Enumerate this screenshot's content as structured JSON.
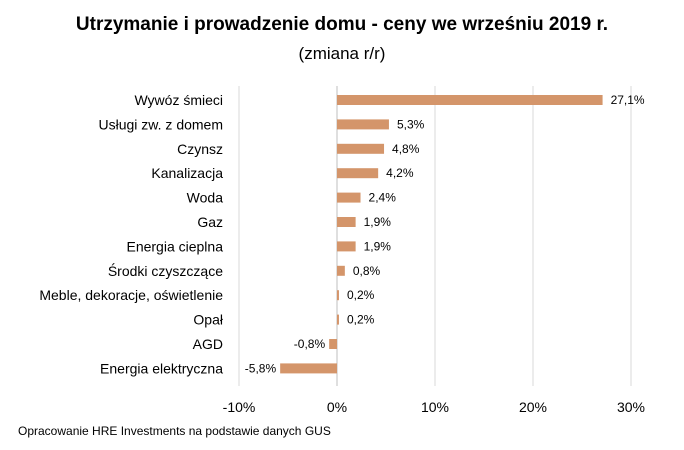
{
  "chart_data": {
    "type": "bar",
    "orientation": "horizontal",
    "title": "Utrzymanie i prowadzenie domu - ceny we wrześniu 2019 r.",
    "subtitle": "(zmiana r/r)",
    "categories": [
      "Wywóz śmieci",
      "Usługi zw. z domem",
      "Czynsz",
      "Kanalizacja",
      "Woda",
      "Gaz",
      "Energia cieplna",
      "Środki czyszczące",
      "Meble, dekoracje, oświetlenie",
      "Opał",
      "AGD",
      "Energia elektryczna"
    ],
    "values": [
      27.1,
      5.3,
      4.8,
      4.2,
      2.4,
      1.9,
      1.9,
      0.8,
      0.2,
      0.2,
      -0.8,
      -5.8
    ],
    "value_labels": [
      "27,1%",
      "5,3%",
      "4,8%",
      "4,2%",
      "2,4%",
      "1,9%",
      "1,9%",
      "0,8%",
      "0,2%",
      "0,2%",
      "-0,8%",
      "-5,8%"
    ],
    "xlim": [
      -10,
      30
    ],
    "xticks": [
      -10,
      0,
      10,
      20,
      30
    ],
    "xtick_labels": [
      "-10%",
      "0%",
      "10%",
      "20%",
      "30%"
    ],
    "bar_color": "#D4956A",
    "grid": true,
    "legend": "none"
  },
  "footer": {
    "source": "Opracowanie HRE Investments na podstawie danych GUS"
  }
}
